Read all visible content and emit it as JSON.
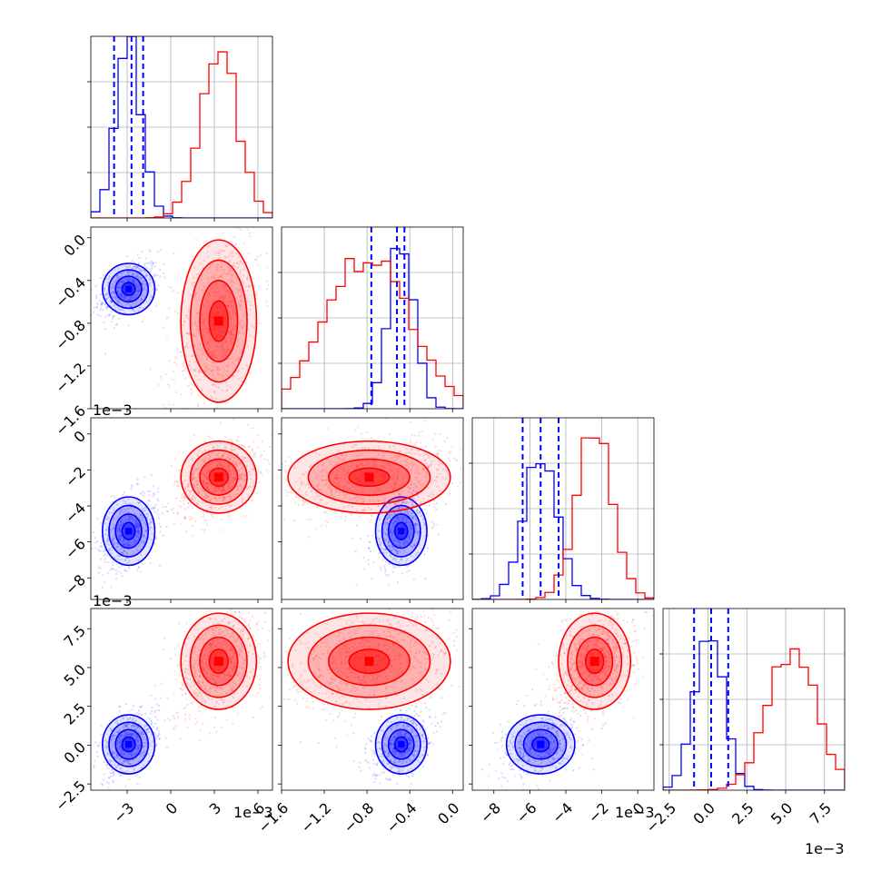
{
  "chart_data": {
    "type": "corner",
    "grid": true,
    "offset_label": "1e−3",
    "parameters": [
      {
        "range": [
          -5.5,
          7.0
        ],
        "ticks": [
          -3,
          0,
          3,
          6
        ],
        "tick_labels": [
          "−3",
          "0",
          "3",
          "6"
        ]
      },
      {
        "range": [
          -1.6,
          0.1
        ],
        "ticks": [
          -1.6,
          -1.2,
          -0.8,
          -0.4,
          0.0
        ],
        "tick_labels": [
          "−1.6",
          "−1.2",
          "−0.8",
          "−0.4",
          "0.0"
        ]
      },
      {
        "range": [
          -9.2,
          0.9
        ],
        "ticks": [
          -8,
          -6,
          -4,
          -2,
          0
        ],
        "tick_labels": [
          "−8",
          "−6",
          "−4",
          "−2",
          "0"
        ]
      },
      {
        "range": [
          -2.9,
          8.8
        ],
        "ticks": [
          -2.5,
          0.0,
          2.5,
          5.0,
          7.5
        ],
        "tick_labels": [
          "−2.5",
          "0.0",
          "2.5",
          "5.0",
          "7.5"
        ]
      }
    ],
    "series": [
      {
        "color": "#0000ff",
        "means": [
          -2.9,
          -0.48,
          -5.4,
          0.05
        ],
        "sds": [
          0.9,
          0.12,
          0.95,
          0.95
        ],
        "quantiles": [
          [
            -3.9,
            -2.7,
            -1.9
          ],
          [
            -0.76,
            -0.52,
            -0.45
          ],
          [
            -6.4,
            -5.4,
            -4.4
          ],
          [
            -0.9,
            0.2,
            1.3
          ]
        ],
        "hist_peaks": [
          0.95,
          0.92,
          0.78,
          0.9
        ]
      },
      {
        "color": "#ff0000",
        "means": [
          3.3,
          -0.78,
          -2.4,
          5.4
        ],
        "sds": [
          1.3,
          0.38,
          1.0,
          1.55
        ],
        "hist_peaks": [
          0.92,
          0.86,
          0.92,
          0.78
        ]
      }
    ]
  }
}
